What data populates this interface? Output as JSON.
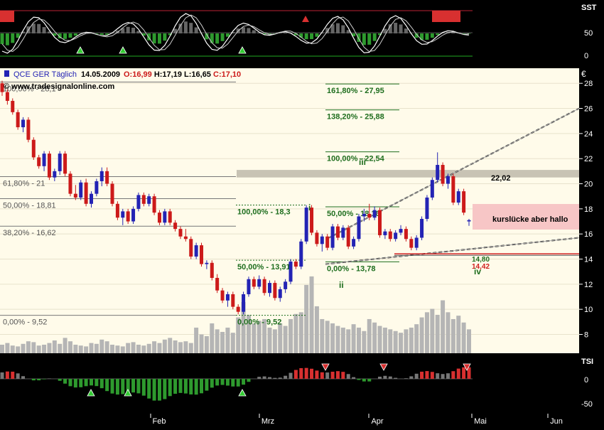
{
  "chart_data": {
    "type": "candlestick",
    "header": {
      "symbol": "QCE GER",
      "interval": "Täglich",
      "date": "14.05.2009",
      "open": "O:16,99",
      "high": "H:17,19",
      "low": "L:16,65",
      "close": "C:17,10",
      "website": "www.tradesignalonline.com"
    },
    "currency_label": "€",
    "ylim": [
      6.5,
      29.2
    ],
    "y_ticks": [
      8,
      10,
      12,
      14,
      16,
      18,
      20,
      22,
      24,
      26,
      28
    ],
    "x_labels": [
      "Feb",
      "Mrz",
      "Apr",
      "Mai",
      "Jun"
    ],
    "candles": [
      [
        28.0,
        28.2,
        27.0,
        27.3
      ],
      [
        27.3,
        27.5,
        26.3,
        26.6
      ],
      [
        26.6,
        26.8,
        25.5,
        25.7
      ],
      [
        25.7,
        25.9,
        24.3,
        24.5
      ],
      [
        24.5,
        25.3,
        24.1,
        25.1
      ],
      [
        25.1,
        25.3,
        23.3,
        23.5
      ],
      [
        23.5,
        23.7,
        21.9,
        22.1
      ],
      [
        22.1,
        22.3,
        21.2,
        21.4
      ],
      [
        21.4,
        22.6,
        21.0,
        22.4
      ],
      [
        22.4,
        22.6,
        20.3,
        20.5
      ],
      [
        20.5,
        21.2,
        20.2,
        21.0
      ],
      [
        21.0,
        22.6,
        20.7,
        22.4
      ],
      [
        22.4,
        22.6,
        20.6,
        20.8
      ],
      [
        20.8,
        21.0,
        19.0,
        19.2
      ],
      [
        19.2,
        19.9,
        18.7,
        18.9
      ],
      [
        18.9,
        20.3,
        18.7,
        20.1
      ],
      [
        20.1,
        20.4,
        18.2,
        18.4
      ],
      [
        18.4,
        19.4,
        18.1,
        19.2
      ],
      [
        19.2,
        20.4,
        19.0,
        20.2
      ],
      [
        20.2,
        21.3,
        19.8,
        21.0
      ],
      [
        21.0,
        21.3,
        19.8,
        20.0
      ],
      [
        20.0,
        20.2,
        18.2,
        18.4
      ],
      [
        18.4,
        18.6,
        17.1,
        17.3
      ],
      [
        17.3,
        18.0,
        16.7,
        17.8
      ],
      [
        17.8,
        18.0,
        16.8,
        17.0
      ],
      [
        17.0,
        18.2,
        16.8,
        18.0
      ],
      [
        18.0,
        19.3,
        17.8,
        19.1
      ],
      [
        19.1,
        19.3,
        18.2,
        18.4
      ],
      [
        18.4,
        19.2,
        18.2,
        19.0
      ],
      [
        19.0,
        19.2,
        17.5,
        17.7
      ],
      [
        17.7,
        17.9,
        16.7,
        16.9
      ],
      [
        16.9,
        18.0,
        16.7,
        17.8
      ],
      [
        17.8,
        18.0,
        16.7,
        16.9
      ],
      [
        16.9,
        17.1,
        16.2,
        16.4
      ],
      [
        16.4,
        16.6,
        15.6,
        15.8
      ],
      [
        15.8,
        16.4,
        15.4,
        15.6
      ],
      [
        15.6,
        15.8,
        14.0,
        14.2
      ],
      [
        14.2,
        15.3,
        14.0,
        15.1
      ],
      [
        15.1,
        15.3,
        13.4,
        13.6
      ],
      [
        13.6,
        13.9,
        13.2,
        13.7
      ],
      [
        13.7,
        13.9,
        12.3,
        12.5
      ],
      [
        12.5,
        12.8,
        11.3,
        11.5
      ],
      [
        11.5,
        11.7,
        10.5,
        10.7
      ],
      [
        10.7,
        11.4,
        10.2,
        11.2
      ],
      [
        11.2,
        11.4,
        10.0,
        10.2
      ],
      [
        10.2,
        10.4,
        9.6,
        9.8
      ],
      [
        9.8,
        11.4,
        9.6,
        11.2
      ],
      [
        11.2,
        12.6,
        11.0,
        12.4
      ],
      [
        12.4,
        12.6,
        11.6,
        11.8
      ],
      [
        11.8,
        12.7,
        11.6,
        12.4
      ],
      [
        12.4,
        12.6,
        11.1,
        11.3
      ],
      [
        11.3,
        12.3,
        11.0,
        12.1
      ],
      [
        12.1,
        12.3,
        10.7,
        10.9
      ],
      [
        10.9,
        11.8,
        10.6,
        11.6
      ],
      [
        11.6,
        12.4,
        11.3,
        12.2
      ],
      [
        12.2,
        14.0,
        12.0,
        13.8
      ],
      [
        13.8,
        14.0,
        13.2,
        13.4
      ],
      [
        13.4,
        15.6,
        13.2,
        15.4
      ],
      [
        15.4,
        18.3,
        15.2,
        18.1
      ],
      [
        18.1,
        18.3,
        15.9,
        16.1
      ],
      [
        16.1,
        16.3,
        15.0,
        15.2
      ],
      [
        15.2,
        16.0,
        14.6,
        15.8
      ],
      [
        15.8,
        16.0,
        14.7,
        14.9
      ],
      [
        14.9,
        16.8,
        14.7,
        16.6
      ],
      [
        16.6,
        16.8,
        15.5,
        15.7
      ],
      [
        15.7,
        16.7,
        15.5,
        16.5
      ],
      [
        16.5,
        16.7,
        14.8,
        15.0
      ],
      [
        15.0,
        15.8,
        14.8,
        15.6
      ],
      [
        15.6,
        17.6,
        15.4,
        17.4
      ],
      [
        17.4,
        18.0,
        17.0,
        17.6
      ],
      [
        17.6,
        18.4,
        17.1,
        17.3
      ],
      [
        17.3,
        18.2,
        17.1,
        17.9
      ],
      [
        17.9,
        18.1,
        15.7,
        15.9
      ],
      [
        15.9,
        16.4,
        15.6,
        16.2
      ],
      [
        16.2,
        16.4,
        15.4,
        15.6
      ],
      [
        15.6,
        16.3,
        15.4,
        16.1
      ],
      [
        16.1,
        16.7,
        15.9,
        16.4
      ],
      [
        16.4,
        16.6,
        15.4,
        15.6
      ],
      [
        15.6,
        15.8,
        14.7,
        14.9
      ],
      [
        14.9,
        15.9,
        14.7,
        15.7
      ],
      [
        15.7,
        17.4,
        15.5,
        17.2
      ],
      [
        17.2,
        19.1,
        17.0,
        18.9
      ],
      [
        18.9,
        20.5,
        18.7,
        20.3
      ],
      [
        20.3,
        22.5,
        20.1,
        21.5
      ],
      [
        21.5,
        21.7,
        19.8,
        20.0
      ],
      [
        20.0,
        20.8,
        19.6,
        20.6
      ],
      [
        20.6,
        20.8,
        18.3,
        18.5
      ],
      [
        18.5,
        19.6,
        18.3,
        19.4
      ],
      [
        19.4,
        19.6,
        17.5,
        17.7
      ],
      [
        17.0,
        17.2,
        16.65,
        17.1
      ]
    ],
    "volume_pct": [
      10,
      12,
      9,
      8,
      11,
      14,
      13,
      9,
      10,
      12,
      15,
      11,
      18,
      14,
      10,
      9,
      8,
      12,
      11,
      16,
      14,
      10,
      9,
      8,
      12,
      13,
      10,
      9,
      11,
      14,
      12,
      16,
      18,
      15,
      13,
      14,
      12,
      30,
      22,
      20,
      35,
      28,
      25,
      30,
      24,
      42,
      60,
      45,
      35,
      38,
      40,
      30,
      28,
      35,
      32,
      40,
      46,
      48,
      80,
      90,
      55,
      40,
      38,
      35,
      32,
      30,
      28,
      34,
      30,
      26,
      40,
      36,
      32,
      30,
      28,
      26,
      24,
      28,
      30,
      34,
      42,
      48,
      52,
      45,
      62,
      48,
      40,
      44,
      36,
      28
    ],
    "fibonacci": [
      {
        "label": "100,00% - 28,1",
        "value": 28.1
      },
      {
        "label": "61,80% - 21",
        "value": 20.57
      },
      {
        "label": "50,00% - 18,81",
        "value": 18.81
      },
      {
        "label": "38,20% - 16,62",
        "value": 16.62
      },
      {
        "label": "0,00% - 9,52",
        "value": 9.52
      },
      {
        "label": "100,00% - 18,3",
        "value": 18.3
      },
      {
        "label": "50,00% - 13,91",
        "value": 13.91
      },
      {
        "label": "0,00% - 9,52",
        "value": 9.52
      },
      {
        "label": "161,80% - 27,95",
        "value": 27.95
      },
      {
        "label": "138,20% - 25,88",
        "value": 25.88
      },
      {
        "label": "100,00% - 22,54",
        "value": 22.54
      },
      {
        "label": "50,00% - 18,16",
        "value": 18.16
      },
      {
        "label": "0,00% - 13,78",
        "value": 13.78
      }
    ],
    "wave_labels": [
      "i",
      "ii",
      "iii",
      "iv"
    ],
    "annotations": {
      "gap_text": "kurslücke aber hallo",
      "level_label_1": "22,02",
      "level_label_2": "14,80",
      "level_label_3": "14,42"
    },
    "top_indicator": {
      "name": "SST",
      "ticks": [
        "50",
        "0"
      ]
    },
    "bottom_indicator": {
      "name": "TSI",
      "ticks": [
        "0",
        "-50"
      ]
    },
    "colors": {
      "background": "#000000",
      "main_panel": "#fffbea",
      "up_candle": "#2323b4",
      "down_candle": "#cc1a1a",
      "fib_green": "#1e6e1e",
      "gap_box": "#f7c6c6",
      "level_red": "#d02020",
      "volume": "#b5b5b5",
      "indicator_green": "#2e9a2e",
      "indicator_red": "#d83030"
    }
  }
}
